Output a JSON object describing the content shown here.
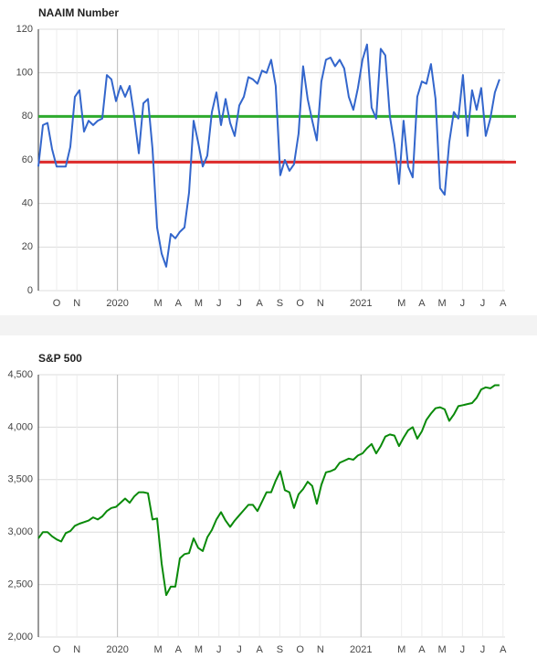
{
  "chart_data": [
    {
      "type": "line",
      "title": "NAAIM Number",
      "color": "#3366cc",
      "x": [
        0.1,
        0.325,
        0.55,
        0.775,
        1,
        1.225,
        1.45,
        1.675,
        1.9,
        2.125,
        2.35,
        2.575,
        2.8,
        3.025,
        3.25,
        3.475,
        3.7,
        3.925,
        4.15,
        4.375,
        4.6,
        4.825,
        5.05,
        5.275,
        5.5,
        5.725,
        5.95,
        6.175,
        6.4,
        6.625,
        6.85,
        7.075,
        7.3,
        7.525,
        7.75,
        7.975,
        8.2,
        8.425,
        8.65,
        8.875,
        9.1,
        9.325,
        9.55,
        9.775,
        10,
        10.225,
        10.45,
        10.675,
        10.9,
        11.125,
        11.35,
        11.575,
        11.8,
        12.025,
        12.25,
        12.475,
        12.7,
        12.925,
        13.15,
        13.375,
        13.6,
        13.825,
        14.05,
        14.275,
        14.5,
        14.725,
        14.95,
        15.175,
        15.4,
        15.625,
        15.85,
        16.075,
        16.3,
        16.525,
        16.75,
        16.975,
        17.2,
        17.425,
        17.65,
        17.875,
        18.1,
        18.325,
        18.55,
        18.775,
        19,
        19.225,
        19.45,
        19.675,
        19.9,
        20.125,
        20.35,
        20.575,
        20.8,
        21.025,
        21.25,
        21.475,
        21.7,
        21.925,
        22.15,
        22.375,
        22.6,
        22.825
      ],
      "values": [
        57,
        76,
        77,
        65,
        57,
        57,
        57,
        66,
        89,
        92,
        73,
        78,
        76,
        78,
        79,
        99,
        97,
        87,
        94,
        89,
        94,
        80,
        63,
        86,
        88,
        65,
        29,
        17,
        11,
        26,
        24,
        27,
        29,
        45,
        78,
        68,
        57,
        62,
        82,
        91,
        76,
        88,
        77,
        71,
        85,
        89,
        98,
        97,
        95,
        101,
        100,
        106,
        94,
        53,
        60,
        55,
        58,
        72,
        103,
        88,
        78,
        69,
        96,
        106,
        107,
        103,
        106,
        102,
        89,
        83,
        93,
        106,
        113,
        84,
        79,
        111,
        108,
        80,
        67,
        49,
        78,
        57,
        52,
        89,
        96,
        95,
        104,
        88,
        47,
        44,
        68,
        82,
        79,
        99,
        71,
        92,
        83,
        93,
        71,
        79,
        91,
        97
      ],
      "reference_lines": [
        {
          "value": 80,
          "color": "#2eaa2e"
        },
        {
          "value": 59,
          "color": "#dd2a2a"
        }
      ],
      "xlim": [
        0.1,
        23.1
      ],
      "xticks": [
        {
          "value": 1,
          "label": "O"
        },
        {
          "value": 2,
          "label": "N"
        },
        {
          "value": 4,
          "label": "2020"
        },
        {
          "value": 6,
          "label": "M"
        },
        {
          "value": 7,
          "label": "A"
        },
        {
          "value": 8,
          "label": "M"
        },
        {
          "value": 9,
          "label": "J"
        },
        {
          "value": 10,
          "label": "J"
        },
        {
          "value": 11,
          "label": "A"
        },
        {
          "value": 12,
          "label": "S"
        },
        {
          "value": 13,
          "label": "O"
        },
        {
          "value": 14,
          "label": "N"
        },
        {
          "value": 16,
          "label": "2021"
        },
        {
          "value": 18,
          "label": "M"
        },
        {
          "value": 19,
          "label": "A"
        },
        {
          "value": 20,
          "label": "M"
        },
        {
          "value": 21,
          "label": "J"
        },
        {
          "value": 22,
          "label": "J"
        },
        {
          "value": 23,
          "label": "A"
        }
      ],
      "ylim": [
        0,
        120
      ],
      "yticks": [
        0,
        20,
        40,
        60,
        80,
        100,
        120
      ],
      "grid": true
    },
    {
      "type": "line",
      "title": "S&P 500",
      "color": "#0a8a0a",
      "x": [
        0.1,
        0.325,
        0.55,
        0.775,
        1,
        1.225,
        1.45,
        1.675,
        1.9,
        2.125,
        2.35,
        2.575,
        2.8,
        3.025,
        3.25,
        3.475,
        3.7,
        3.925,
        4.15,
        4.375,
        4.6,
        4.825,
        5.05,
        5.275,
        5.5,
        5.725,
        5.95,
        6.175,
        6.4,
        6.625,
        6.85,
        7.075,
        7.3,
        7.525,
        7.75,
        7.975,
        8.2,
        8.425,
        8.65,
        8.875,
        9.1,
        9.325,
        9.55,
        9.775,
        10,
        10.225,
        10.45,
        10.675,
        10.9,
        11.125,
        11.35,
        11.575,
        11.8,
        12.025,
        12.25,
        12.475,
        12.7,
        12.925,
        13.15,
        13.375,
        13.6,
        13.825,
        14.05,
        14.275,
        14.5,
        14.725,
        14.95,
        15.175,
        15.4,
        15.625,
        15.85,
        16.075,
        16.3,
        16.525,
        16.75,
        16.975,
        17.2,
        17.425,
        17.65,
        17.875,
        18.1,
        18.325,
        18.55,
        18.775,
        19,
        19.225,
        19.45,
        19.675,
        19.9,
        20.125,
        20.35,
        20.575,
        20.8,
        21.025,
        21.25,
        21.475,
        21.7,
        21.925,
        22.15,
        22.375,
        22.6,
        22.825
      ],
      "values": [
        2940,
        3000,
        3000,
        2960,
        2930,
        2910,
        2990,
        3010,
        3060,
        3080,
        3095,
        3110,
        3140,
        3120,
        3150,
        3200,
        3230,
        3240,
        3280,
        3320,
        3280,
        3340,
        3380,
        3380,
        3370,
        3120,
        3130,
        2700,
        2400,
        2480,
        2480,
        2750,
        2790,
        2800,
        2940,
        2850,
        2820,
        2950,
        3020,
        3120,
        3190,
        3110,
        3050,
        3110,
        3160,
        3210,
        3260,
        3260,
        3200,
        3290,
        3380,
        3380,
        3490,
        3580,
        3400,
        3380,
        3230,
        3360,
        3410,
        3480,
        3440,
        3270,
        3450,
        3570,
        3580,
        3600,
        3660,
        3680,
        3700,
        3690,
        3730,
        3750,
        3800,
        3840,
        3750,
        3820,
        3910,
        3930,
        3920,
        3820,
        3900,
        3970,
        4000,
        3890,
        3960,
        4070,
        4130,
        4180,
        4190,
        4170,
        4060,
        4120,
        4200,
        4210,
        4220,
        4230,
        4280,
        4360,
        4380,
        4370,
        4400,
        4400
      ],
      "xlim": [
        0.1,
        23.1
      ],
      "xticks": [
        {
          "value": 1,
          "label": "O"
        },
        {
          "value": 2,
          "label": "N"
        },
        {
          "value": 4,
          "label": "2020"
        },
        {
          "value": 6,
          "label": "M"
        },
        {
          "value": 7,
          "label": "A"
        },
        {
          "value": 8,
          "label": "M"
        },
        {
          "value": 9,
          "label": "J"
        },
        {
          "value": 10,
          "label": "J"
        },
        {
          "value": 11,
          "label": "A"
        },
        {
          "value": 12,
          "label": "S"
        },
        {
          "value": 13,
          "label": "O"
        },
        {
          "value": 14,
          "label": "N"
        },
        {
          "value": 16,
          "label": "2021"
        },
        {
          "value": 18,
          "label": "M"
        },
        {
          "value": 19,
          "label": "A"
        },
        {
          "value": 20,
          "label": "M"
        },
        {
          "value": 21,
          "label": "J"
        },
        {
          "value": 22,
          "label": "J"
        },
        {
          "value": 23,
          "label": "A"
        }
      ],
      "ylim": [
        2000,
        4500
      ],
      "yticks": [
        {
          "value": 2000,
          "label": "2,000"
        },
        {
          "value": 2500,
          "label": "2,500"
        },
        {
          "value": 3000,
          "label": "3,000"
        },
        {
          "value": 3500,
          "label": "3,500"
        },
        {
          "value": 4000,
          "label": "4,000"
        },
        {
          "value": 4500,
          "label": "4,500"
        }
      ],
      "grid": true
    }
  ]
}
